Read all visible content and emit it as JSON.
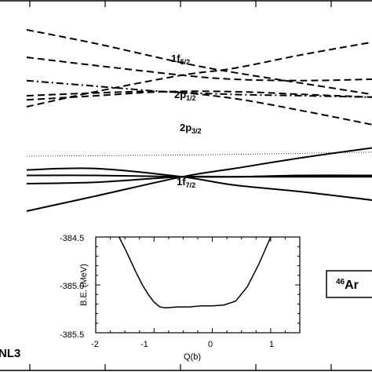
{
  "chart_data": [
    {
      "type": "line",
      "description_labels": {
        "f52": {
          "main": "1f",
          "sub": "5/2"
        },
        "p12": {
          "main": "2p",
          "sub": "1/2"
        },
        "p32": {
          "main": "2p",
          "sub": "3/2"
        },
        "f72": {
          "main": "1f",
          "sub": "7/2"
        }
      },
      "model_label": "NL3",
      "nucleus_label": {
        "mass": "46",
        "symbol": "Ar"
      },
      "series": [
        {
          "level": "1f5/2",
          "style": "dashed",
          "x": [
            0,
            0.2,
            0.45,
            0.6,
            0.8,
            1.0
          ],
          "y": [
            0.92,
            0.82,
            0.68,
            0.61,
            0.53,
            0.45
          ]
        },
        {
          "level": "1f5/2",
          "style": "dashed",
          "x": [
            0,
            0.2,
            0.45,
            0.6,
            0.8,
            1.0
          ],
          "y": [
            0.36,
            0.47,
            0.59,
            0.64,
            0.74,
            0.83
          ]
        },
        {
          "level": "1f5/2",
          "style": "dashed",
          "x": [
            0,
            0.2,
            0.45,
            0.6,
            0.8,
            1.0
          ],
          "y": [
            0.72,
            0.66,
            0.59,
            0.56,
            0.55,
            0.56
          ]
        },
        {
          "level": "2p1/2",
          "style": "dash-dot",
          "x": [
            0,
            0.2,
            0.4,
            0.6,
            0.8,
            1.0
          ],
          "y": [
            0.55,
            0.51,
            0.47,
            0.45,
            0.44,
            0.43
          ]
        },
        {
          "level": "2p3/2",
          "style": "dashed",
          "x": [
            0,
            0.2,
            0.4,
            0.6,
            0.8,
            1.0
          ],
          "y": [
            0.44,
            0.46,
            0.47,
            0.42,
            0.33,
            0.23
          ]
        },
        {
          "level": "2p3/2",
          "style": "dashed",
          "x": [
            0,
            0.2,
            0.4,
            0.6,
            0.8,
            1.0
          ],
          "y": [
            0.41,
            0.44,
            0.47,
            0.47,
            0.45,
            0.43
          ]
        },
        {
          "level": "1f7/2",
          "style": "solid",
          "x": [
            0,
            0.2,
            0.45,
            0.6,
            0.8,
            1.0
          ],
          "y": [
            -0.1,
            -0.09,
            -0.15,
            -0.21,
            -0.26,
            -0.32
          ]
        },
        {
          "level": "1f7/2",
          "style": "solid",
          "x": [
            0,
            0.2,
            0.45,
            0.6,
            0.8,
            1.0
          ],
          "y": [
            -0.14,
            -0.14,
            -0.15,
            -0.15,
            -0.14,
            -0.14
          ]
        },
        {
          "level": "1f7/2",
          "style": "solid",
          "x": [
            0,
            0.2,
            0.45,
            0.6,
            0.8,
            1.0
          ],
          "y": [
            -0.4,
            -0.29,
            -0.15,
            -0.09,
            -0.01,
            0.06
          ]
        },
        {
          "level": "1f7/2",
          "style": "solid",
          "x": [
            0,
            0.2,
            0.45,
            0.6,
            0.8,
            1.0
          ],
          "y": [
            -0.2,
            -0.19,
            -0.15,
            -0.15,
            -0.15,
            -0.15
          ]
        },
        {
          "level": "fermi",
          "style": "dotted",
          "x": [
            0,
            0.5,
            1.0
          ],
          "y": [
            0.0,
            0.01,
            0.03
          ]
        }
      ]
    },
    {
      "type": "line",
      "xlabel": "Q(b)",
      "ylabel": "B.E. (MeV)",
      "xlim": [
        -2,
        1.5
      ],
      "ylim": [
        -385.5,
        -384.5
      ],
      "xticks": [
        "-2",
        "-1",
        "0",
        "1"
      ],
      "yticks": [
        "-384.5",
        "-385.0",
        "-385.5"
      ],
      "x": [
        -1.6,
        -1.5,
        -1.4,
        -1.3,
        -1.2,
        -1.1,
        -1.0,
        -0.9,
        -0.8,
        -0.6,
        -0.4,
        -0.2,
        0.0,
        0.2,
        0.4,
        0.6,
        0.8,
        1.0
      ],
      "y": [
        -384.5,
        -384.62,
        -384.75,
        -384.88,
        -385.0,
        -385.1,
        -385.18,
        -385.23,
        -385.24,
        -385.23,
        -385.23,
        -385.22,
        -385.22,
        -385.21,
        -385.17,
        -385.02,
        -384.78,
        -384.5
      ]
    }
  ]
}
